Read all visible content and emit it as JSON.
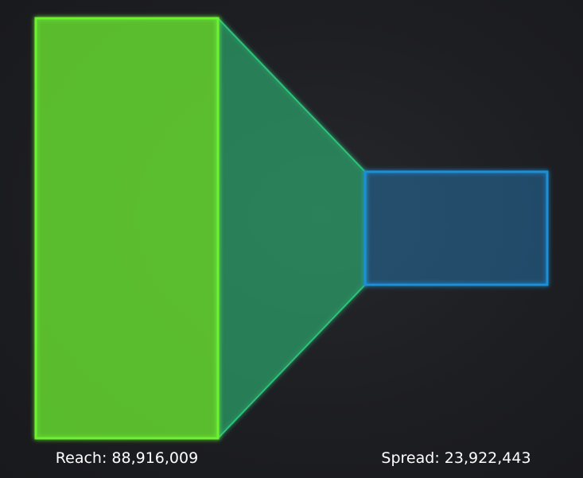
{
  "chart_data": {
    "type": "funnel",
    "stages": [
      {
        "label": "Reach",
        "value": 88916009,
        "display": "Reach: 88,916,009",
        "color": "#6df233"
      },
      {
        "label": "Spread",
        "value": 23922443,
        "display": "Spread: 23,922,443",
        "color": "#1e8fd6"
      }
    ],
    "connector_color": "#2fc27a"
  }
}
